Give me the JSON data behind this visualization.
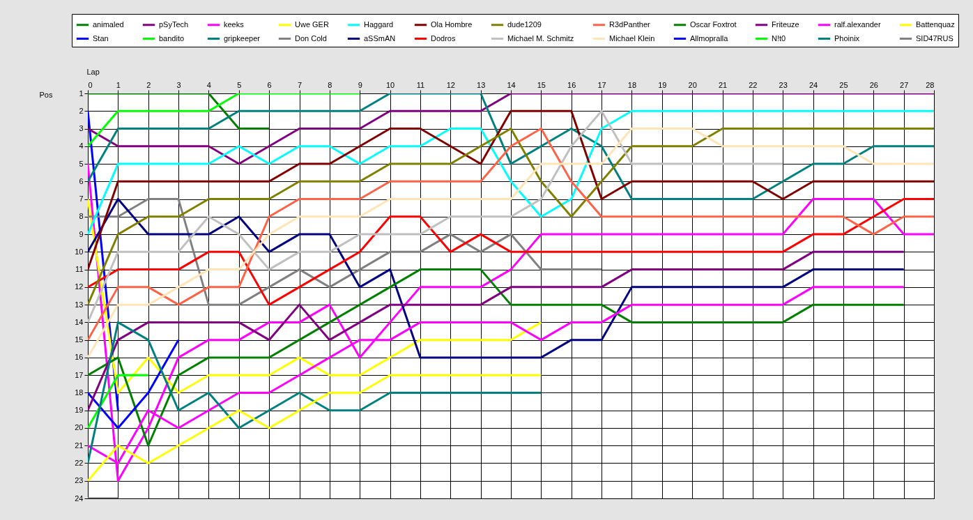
{
  "chart_data": {
    "type": "line",
    "xlabel": "Lap",
    "ylabel": "Pos",
    "x": [
      0,
      1,
      2,
      3,
      4,
      5,
      6,
      7,
      8,
      9,
      10,
      11,
      12,
      13,
      14,
      15,
      16,
      17,
      18,
      19,
      20,
      21,
      22,
      23,
      24,
      25,
      26,
      27,
      28
    ],
    "xlim": [
      0,
      28
    ],
    "xticks": [
      0,
      1,
      2,
      3,
      4,
      5,
      6,
      7,
      8,
      9,
      10,
      11,
      12,
      13,
      14,
      15,
      16,
      17,
      18,
      19,
      20,
      21,
      22,
      23,
      24,
      25,
      26,
      27,
      28
    ],
    "ylim": [
      24,
      1
    ],
    "yticks": [
      1,
      2,
      3,
      4,
      5,
      6,
      7,
      8,
      9,
      10,
      11,
      12,
      13,
      14,
      15,
      16,
      17,
      18,
      19,
      20,
      21,
      22,
      23,
      24
    ],
    "grid": true,
    "legend": "top",
    "line_style": "solid",
    "series": [
      {
        "name": "animaled",
        "color": "#008000",
        "values": [
          1,
          1,
          1,
          1,
          1,
          3,
          3,
          null,
          null,
          null,
          null,
          null,
          null,
          null,
          null,
          null,
          null,
          null,
          null,
          null,
          null,
          null,
          null,
          null,
          null,
          null,
          null,
          null,
          null
        ]
      },
      {
        "name": "Stan",
        "color": "#0000ff",
        "values": [
          2,
          19,
          null,
          null,
          null,
          null,
          null,
          null,
          null,
          null,
          null,
          null,
          null,
          null,
          null,
          null,
          null,
          null,
          null,
          null,
          null,
          null,
          null,
          null,
          null,
          null,
          null,
          null,
          null
        ]
      },
      {
        "name": "pSyTech",
        "color": "#800080",
        "values": [
          3,
          4,
          4,
          4,
          4,
          5,
          4,
          3,
          3,
          3,
          2,
          2,
          2,
          2,
          1,
          1,
          1,
          1,
          1,
          1,
          1,
          1,
          1,
          1,
          1,
          1,
          1,
          1,
          1
        ]
      },
      {
        "name": "bandito",
        "color": "#00ff00",
        "values": [
          4,
          2,
          2,
          2,
          2,
          1,
          1,
          1,
          1,
          1,
          null,
          null,
          null,
          null,
          null,
          null,
          null,
          null,
          null,
          null,
          null,
          null,
          null,
          null,
          null,
          null,
          null,
          null,
          null
        ]
      },
      {
        "name": "keeks",
        "color": "#ff00ff",
        "values": [
          5,
          23,
          20,
          16,
          15,
          15,
          14,
          14,
          13,
          16,
          14,
          12,
          12,
          12,
          11,
          9,
          9,
          9,
          9,
          9,
          9,
          9,
          9,
          9,
          7,
          7,
          7,
          9,
          9
        ]
      },
      {
        "name": "gripkeeper",
        "color": "#008080",
        "values": [
          6,
          3,
          3,
          3,
          3,
          2,
          2,
          2,
          2,
          2,
          1,
          1,
          1,
          1,
          5,
          4,
          3,
          4,
          7,
          7,
          7,
          7,
          7,
          6,
          5,
          5,
          4,
          4,
          4
        ]
      },
      {
        "name": "Uwe GER",
        "color": "#ffff00",
        "values": [
          7,
          18,
          16,
          18,
          17,
          17,
          17,
          16,
          17,
          17,
          16,
          15,
          15,
          15,
          15,
          14,
          null,
          null,
          null,
          null,
          null,
          null,
          null,
          null,
          null,
          null,
          null,
          null,
          null
        ]
      },
      {
        "name": "Don Cold",
        "color": "#808080",
        "values": [
          8,
          8,
          7,
          7,
          13,
          13,
          12,
          11,
          12,
          11,
          10,
          10,
          9,
          10,
          9,
          11,
          11,
          11,
          null,
          null,
          null,
          null,
          null,
          null,
          null,
          null,
          null,
          null,
          null
        ]
      },
      {
        "name": "Haggard",
        "color": "#00ffff",
        "values": [
          9,
          5,
          5,
          5,
          5,
          4,
          5,
          4,
          4,
          5,
          4,
          4,
          3,
          3,
          6,
          8,
          7,
          3,
          2,
          2,
          2,
          2,
          2,
          2,
          2,
          2,
          2,
          2,
          2
        ]
      },
      {
        "name": "aSSmAN",
        "color": "#000080",
        "values": [
          10,
          7,
          9,
          9,
          9,
          8,
          10,
          9,
          9,
          12,
          11,
          16,
          16,
          16,
          16,
          16,
          15,
          15,
          12,
          12,
          12,
          12,
          12,
          12,
          11,
          11,
          11,
          11,
          null
        ]
      },
      {
        "name": "Ola Hombre",
        "color": "#800000",
        "values": [
          11,
          6,
          6,
          6,
          6,
          6,
          6,
          5,
          5,
          4,
          3,
          3,
          4,
          5,
          2,
          2,
          2,
          7,
          6,
          6,
          6,
          6,
          6,
          7,
          6,
          6,
          6,
          6,
          6
        ]
      },
      {
        "name": "Dodros",
        "color": "#ff0000",
        "values": [
          12,
          11,
          11,
          11,
          10,
          10,
          13,
          12,
          11,
          10,
          8,
          8,
          10,
          9,
          10,
          10,
          10,
          10,
          10,
          10,
          10,
          10,
          10,
          10,
          9,
          9,
          8,
          7,
          7
        ]
      },
      {
        "name": "dude1209",
        "color": "#808000",
        "values": [
          13,
          9,
          8,
          8,
          7,
          7,
          7,
          6,
          6,
          6,
          5,
          5,
          5,
          4,
          3,
          6,
          8,
          6,
          4,
          4,
          4,
          3,
          3,
          3,
          3,
          3,
          3,
          3,
          3
        ]
      },
      {
        "name": "Michael M. Schmitz",
        "color": "#c0c0c0",
        "values": [
          14,
          10,
          10,
          10,
          8,
          9,
          11,
          10,
          10,
          9,
          9,
          9,
          8,
          8,
          8,
          7,
          4,
          2,
          5,
          5,
          5,
          5,
          5,
          5,
          null,
          null,
          null,
          null,
          null
        ]
      },
      {
        "name": "R3dPanther",
        "color": "#ff6347",
        "values": [
          15,
          12,
          12,
          13,
          12,
          12,
          8,
          7,
          7,
          7,
          6,
          6,
          6,
          6,
          4,
          3,
          6,
          8,
          8,
          8,
          8,
          8,
          8,
          8,
          8,
          8,
          9,
          8,
          8
        ]
      },
      {
        "name": "Michael Klein",
        "color": "#ffe4b5",
        "values": [
          16,
          13,
          13,
          12,
          11,
          11,
          9,
          8,
          8,
          8,
          7,
          7,
          7,
          7,
          7,
          5,
          5,
          5,
          3,
          3,
          3,
          4,
          4,
          4,
          4,
          4,
          5,
          5,
          5
        ]
      },
      {
        "name": "Oscar Foxtrot",
        "color": "#008000",
        "values": [
          17,
          16,
          21,
          17,
          16,
          16,
          16,
          15,
          14,
          13,
          12,
          11,
          11,
          11,
          13,
          13,
          13,
          13,
          14,
          14,
          14,
          14,
          14,
          14,
          13,
          13,
          13,
          13,
          null
        ]
      },
      {
        "name": "Allmopralla",
        "color": "#0000ff",
        "values": [
          18,
          20,
          18,
          15,
          null,
          null,
          null,
          null,
          null,
          null,
          null,
          null,
          null,
          null,
          null,
          null,
          null,
          null,
          null,
          null,
          null,
          null,
          null,
          null,
          null,
          null,
          null,
          null,
          null
        ]
      },
      {
        "name": "Friteuze",
        "color": "#800080",
        "values": [
          19,
          15,
          14,
          14,
          14,
          14,
          15,
          13,
          15,
          14,
          13,
          13,
          13,
          13,
          12,
          12,
          12,
          12,
          11,
          11,
          11,
          11,
          11,
          11,
          10,
          10,
          10,
          10,
          null
        ]
      },
      {
        "name": "N!t0",
        "color": "#00ff00",
        "values": [
          20,
          17,
          17,
          null,
          null,
          null,
          null,
          null,
          null,
          null,
          null,
          null,
          null,
          null,
          null,
          null,
          null,
          null,
          null,
          null,
          null,
          null,
          null,
          null,
          null,
          null,
          null,
          null,
          null
        ]
      },
      {
        "name": "ralf.alexander",
        "color": "#ff00ff",
        "values": [
          21,
          22,
          19,
          20,
          19,
          18,
          18,
          17,
          16,
          15,
          15,
          14,
          14,
          14,
          14,
          15,
          14,
          14,
          13,
          13,
          13,
          13,
          13,
          13,
          12,
          12,
          12,
          12,
          null
        ]
      },
      {
        "name": "Phoinix",
        "color": "#008080",
        "values": [
          22,
          14,
          15,
          19,
          18,
          20,
          19,
          18,
          19,
          19,
          18,
          18,
          18,
          18,
          18,
          18,
          null,
          null,
          null,
          null,
          null,
          null,
          null,
          null,
          null,
          null,
          null,
          null,
          null
        ]
      },
      {
        "name": "Battenquaz",
        "color": "#ffff00",
        "values": [
          23,
          21,
          22,
          21,
          20,
          19,
          20,
          19,
          18,
          18,
          17,
          17,
          17,
          17,
          17,
          17,
          null,
          null,
          null,
          null,
          null,
          null,
          null,
          null,
          null,
          null,
          null,
          null,
          null
        ]
      },
      {
        "name": "SID47RUS",
        "color": "#808080",
        "values": [
          24,
          24,
          null,
          null,
          null,
          null,
          null,
          null,
          null,
          null,
          null,
          null,
          null,
          null,
          null,
          null,
          null,
          null,
          null,
          null,
          null,
          null,
          null,
          null,
          null,
          null,
          null,
          null,
          null
        ]
      }
    ]
  }
}
